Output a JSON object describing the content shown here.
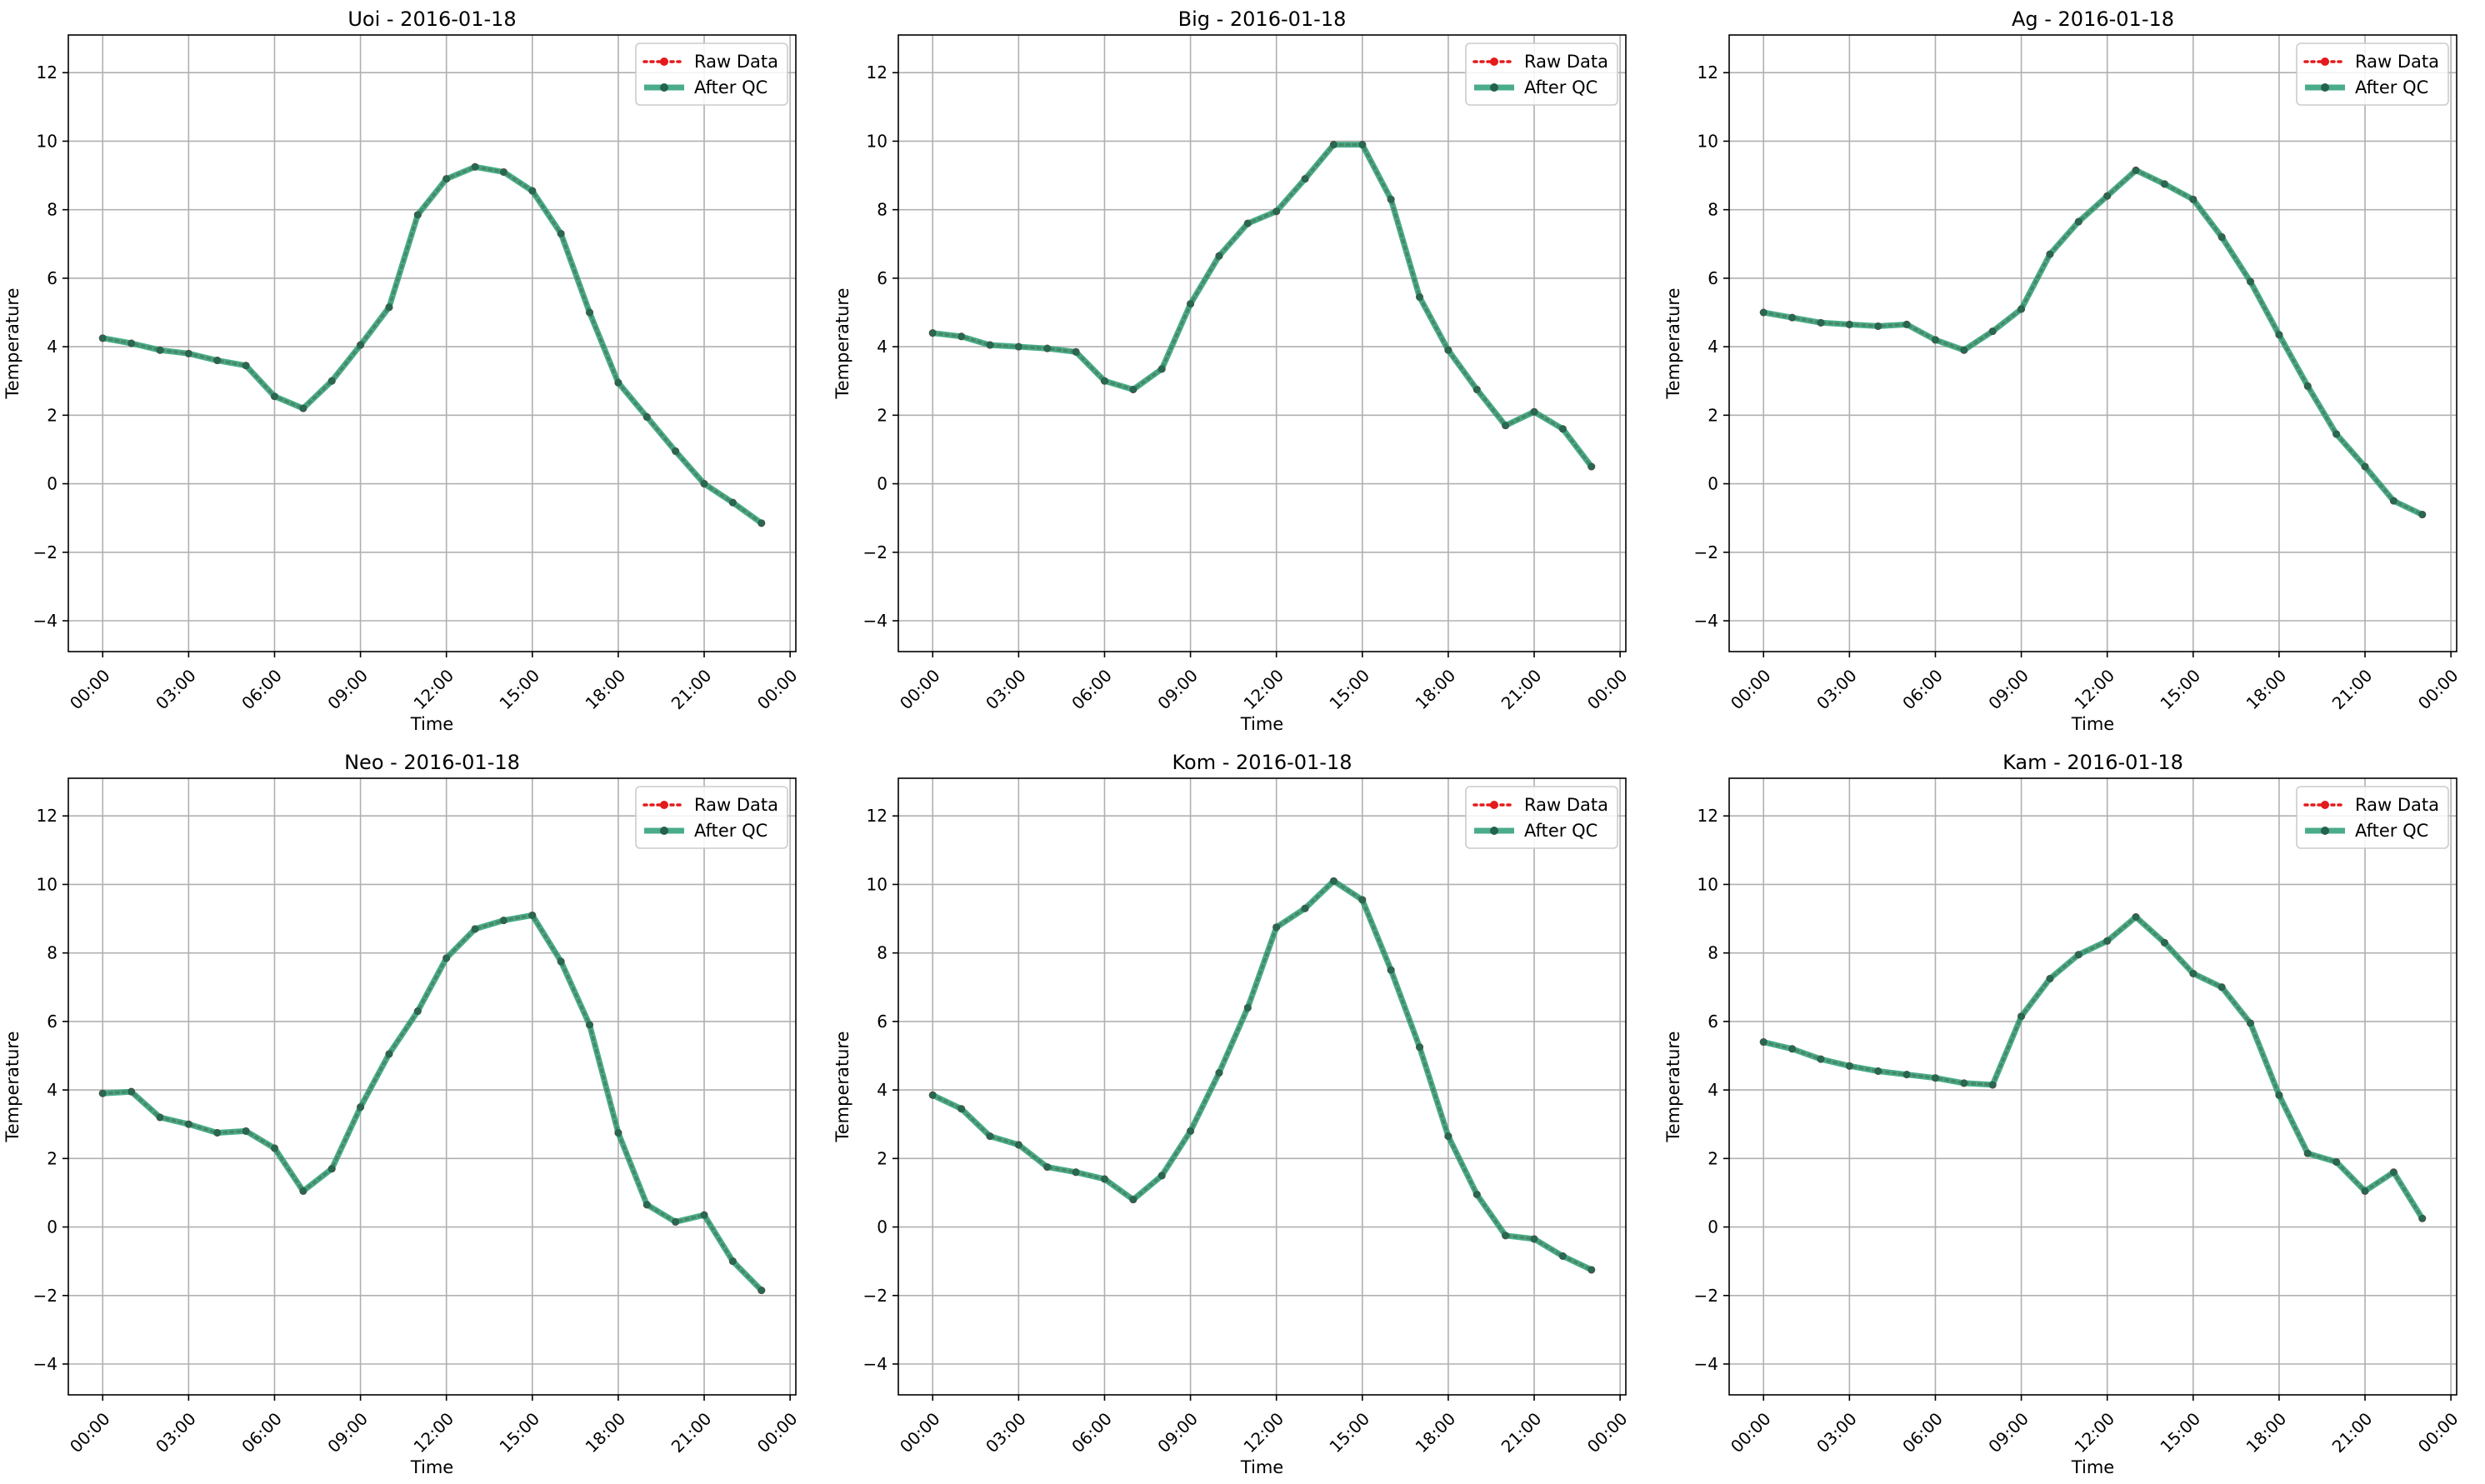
{
  "chart_data": [
    {
      "type": "line",
      "title": "Uoi - 2016-01-18",
      "xlabel": "Time",
      "ylabel": "Temperature",
      "x_ticks": [
        "00:00",
        "03:00",
        "06:00",
        "09:00",
        "12:00",
        "15:00",
        "18:00",
        "21:00",
        "00:00"
      ],
      "y_ticks": [
        -4,
        -2,
        0,
        2,
        4,
        6,
        8,
        10,
        12
      ],
      "xlim_hours": [
        -1.2,
        24.2
      ],
      "ylim": [
        -4.9,
        13.1
      ],
      "grid": true,
      "legend": {
        "position": "top-right",
        "entries": [
          "Raw Data",
          "After QC"
        ]
      },
      "x_hours": [
        0,
        1,
        2,
        3,
        4,
        5,
        6,
        7,
        8,
        9,
        10,
        11,
        12,
        13,
        14,
        15,
        16,
        17,
        18,
        19,
        20,
        21,
        22,
        23
      ],
      "series": [
        {
          "name": "Raw Data",
          "color": "#e41a1c",
          "style": "dotted",
          "values": [
            4.25,
            4.1,
            3.9,
            3.8,
            3.6,
            3.45,
            2.55,
            2.2,
            3.0,
            4.05,
            5.15,
            7.85,
            8.9,
            9.25,
            9.1,
            8.55,
            7.3,
            5.0,
            2.95,
            1.95,
            0.95,
            0.0,
            -0.55,
            -1.15
          ]
        },
        {
          "name": "After QC",
          "color": "#2a9d74",
          "style": "solid",
          "values": [
            4.25,
            4.1,
            3.9,
            3.8,
            3.6,
            3.45,
            2.55,
            2.2,
            3.0,
            4.05,
            5.15,
            7.85,
            8.9,
            9.25,
            9.1,
            8.55,
            7.3,
            5.0,
            2.95,
            1.95,
            0.95,
            0.0,
            -0.55,
            -1.15
          ]
        }
      ]
    },
    {
      "type": "line",
      "title": "Big - 2016-01-18",
      "xlabel": "Time",
      "ylabel": "Temperature",
      "x_ticks": [
        "00:00",
        "03:00",
        "06:00",
        "09:00",
        "12:00",
        "15:00",
        "18:00",
        "21:00",
        "00:00"
      ],
      "y_ticks": [
        -4,
        -2,
        0,
        2,
        4,
        6,
        8,
        10,
        12
      ],
      "xlim_hours": [
        -1.2,
        24.2
      ],
      "ylim": [
        -4.9,
        13.1
      ],
      "grid": true,
      "legend": {
        "position": "top-right",
        "entries": [
          "Raw Data",
          "After QC"
        ]
      },
      "x_hours": [
        0,
        1,
        2,
        3,
        4,
        5,
        6,
        7,
        8,
        9,
        10,
        11,
        12,
        13,
        14,
        15,
        16,
        17,
        18,
        19,
        20,
        21,
        22,
        23
      ],
      "series": [
        {
          "name": "Raw Data",
          "color": "#e41a1c",
          "style": "dotted",
          "values": [
            4.4,
            4.3,
            4.05,
            4.0,
            3.95,
            3.85,
            3.0,
            2.75,
            3.35,
            5.25,
            6.65,
            7.6,
            7.95,
            8.9,
            9.9,
            9.9,
            8.3,
            5.45,
            3.9,
            2.75,
            1.7,
            2.1,
            1.6,
            0.5
          ]
        },
        {
          "name": "After QC",
          "color": "#2a9d74",
          "style": "solid",
          "values": [
            4.4,
            4.3,
            4.05,
            4.0,
            3.95,
            3.85,
            3.0,
            2.75,
            3.35,
            5.25,
            6.65,
            7.6,
            7.95,
            8.9,
            9.9,
            9.9,
            8.3,
            5.45,
            3.9,
            2.75,
            1.7,
            2.1,
            1.6,
            0.5
          ]
        }
      ]
    },
    {
      "type": "line",
      "title": "Ag - 2016-01-18",
      "xlabel": "Time",
      "ylabel": "Temperature",
      "x_ticks": [
        "00:00",
        "03:00",
        "06:00",
        "09:00",
        "12:00",
        "15:00",
        "18:00",
        "21:00",
        "00:00"
      ],
      "y_ticks": [
        -4,
        -2,
        0,
        2,
        4,
        6,
        8,
        10,
        12
      ],
      "xlim_hours": [
        -1.2,
        24.2
      ],
      "ylim": [
        -4.9,
        13.1
      ],
      "grid": true,
      "legend": {
        "position": "top-right",
        "entries": [
          "Raw Data",
          "After QC"
        ]
      },
      "x_hours": [
        0,
        1,
        2,
        3,
        4,
        5,
        6,
        7,
        8,
        9,
        10,
        11,
        12,
        13,
        14,
        15,
        16,
        17,
        18,
        19,
        20,
        21,
        22,
        23
      ],
      "series": [
        {
          "name": "Raw Data",
          "color": "#e41a1c",
          "style": "dotted",
          "values": [
            5.0,
            4.85,
            4.7,
            4.65,
            4.6,
            4.65,
            4.2,
            3.9,
            4.45,
            5.1,
            6.7,
            7.65,
            8.4,
            9.15,
            8.75,
            8.3,
            7.2,
            5.9,
            4.35,
            2.85,
            1.45,
            0.5,
            -0.5,
            -0.9
          ]
        },
        {
          "name": "After QC",
          "color": "#2a9d74",
          "style": "solid",
          "values": [
            5.0,
            4.85,
            4.7,
            4.65,
            4.6,
            4.65,
            4.2,
            3.9,
            4.45,
            5.1,
            6.7,
            7.65,
            8.4,
            9.15,
            8.75,
            8.3,
            7.2,
            5.9,
            4.35,
            2.85,
            1.45,
            0.5,
            -0.5,
            -0.9
          ]
        }
      ]
    },
    {
      "type": "line",
      "title": "Neo - 2016-01-18",
      "xlabel": "Time",
      "ylabel": "Temperature",
      "x_ticks": [
        "00:00",
        "03:00",
        "06:00",
        "09:00",
        "12:00",
        "15:00",
        "18:00",
        "21:00",
        "00:00"
      ],
      "y_ticks": [
        -4,
        -2,
        0,
        2,
        4,
        6,
        8,
        10,
        12
      ],
      "xlim_hours": [
        -1.2,
        24.2
      ],
      "ylim": [
        -4.9,
        13.1
      ],
      "grid": true,
      "legend": {
        "position": "top-right",
        "entries": [
          "Raw Data",
          "After QC"
        ]
      },
      "x_hours": [
        0,
        1,
        2,
        3,
        4,
        5,
        6,
        7,
        8,
        9,
        10,
        11,
        12,
        13,
        14,
        15,
        16,
        17,
        18,
        19,
        20,
        21,
        22,
        23
      ],
      "series": [
        {
          "name": "Raw Data",
          "color": "#e41a1c",
          "style": "dotted",
          "values": [
            3.9,
            3.95,
            3.2,
            3.0,
            2.75,
            2.8,
            2.3,
            1.05,
            1.7,
            3.5,
            5.05,
            6.3,
            7.85,
            8.7,
            8.95,
            9.1,
            7.75,
            5.9,
            2.75,
            0.65,
            0.15,
            0.35,
            -1.0,
            -1.85
          ]
        },
        {
          "name": "After QC",
          "color": "#2a9d74",
          "style": "solid",
          "values": [
            3.9,
            3.95,
            3.2,
            3.0,
            2.75,
            2.8,
            2.3,
            1.05,
            1.7,
            3.5,
            5.05,
            6.3,
            7.85,
            8.7,
            8.95,
            9.1,
            7.75,
            5.9,
            2.75,
            0.65,
            0.15,
            0.35,
            -1.0,
            -1.85
          ]
        }
      ]
    },
    {
      "type": "line",
      "title": "Kom - 2016-01-18",
      "xlabel": "Time",
      "ylabel": "Temperature",
      "x_ticks": [
        "00:00",
        "03:00",
        "06:00",
        "09:00",
        "12:00",
        "15:00",
        "18:00",
        "21:00",
        "00:00"
      ],
      "y_ticks": [
        -4,
        -2,
        0,
        2,
        4,
        6,
        8,
        10,
        12
      ],
      "xlim_hours": [
        -1.2,
        24.2
      ],
      "ylim": [
        -4.9,
        13.1
      ],
      "grid": true,
      "legend": {
        "position": "top-right",
        "entries": [
          "Raw Data",
          "After QC"
        ]
      },
      "x_hours": [
        0,
        1,
        2,
        3,
        4,
        5,
        6,
        7,
        8,
        9,
        10,
        11,
        12,
        13,
        14,
        15,
        16,
        17,
        18,
        19,
        20,
        21,
        22,
        23
      ],
      "series": [
        {
          "name": "Raw Data",
          "color": "#e41a1c",
          "style": "dotted",
          "values": [
            3.85,
            3.45,
            2.65,
            2.4,
            1.75,
            1.6,
            1.4,
            0.8,
            1.5,
            2.8,
            4.5,
            6.4,
            8.75,
            9.3,
            10.1,
            9.55,
            7.5,
            5.25,
            2.65,
            0.95,
            -0.25,
            -0.35,
            -0.85,
            -1.25
          ]
        },
        {
          "name": "After QC",
          "color": "#2a9d74",
          "style": "solid",
          "values": [
            3.85,
            3.45,
            2.65,
            2.4,
            1.75,
            1.6,
            1.4,
            0.8,
            1.5,
            2.8,
            4.5,
            6.4,
            8.75,
            9.3,
            10.1,
            9.55,
            7.5,
            5.25,
            2.65,
            0.95,
            -0.25,
            -0.35,
            -0.85,
            -1.25
          ]
        }
      ]
    },
    {
      "type": "line",
      "title": "Kam - 2016-01-18",
      "xlabel": "Time",
      "ylabel": "Temperature",
      "x_ticks": [
        "00:00",
        "03:00",
        "06:00",
        "09:00",
        "12:00",
        "15:00",
        "18:00",
        "21:00",
        "00:00"
      ],
      "y_ticks": [
        -4,
        -2,
        0,
        2,
        4,
        6,
        8,
        10,
        12
      ],
      "xlim_hours": [
        -1.2,
        24.2
      ],
      "ylim": [
        -4.9,
        13.1
      ],
      "grid": true,
      "legend": {
        "position": "top-right",
        "entries": [
          "Raw Data",
          "After QC"
        ]
      },
      "x_hours": [
        0,
        1,
        2,
        3,
        4,
        5,
        6,
        7,
        8,
        9,
        10,
        11,
        12,
        13,
        14,
        15,
        16,
        17,
        18,
        19,
        20,
        21,
        22,
        23
      ],
      "series": [
        {
          "name": "Raw Data",
          "color": "#e41a1c",
          "style": "dotted",
          "values": [
            5.4,
            5.2,
            4.9,
            4.7,
            4.55,
            4.45,
            4.35,
            4.2,
            4.15,
            6.15,
            7.25,
            7.95,
            8.35,
            9.05,
            8.3,
            7.4,
            7.0,
            5.95,
            3.85,
            2.15,
            1.9,
            1.05,
            1.6,
            0.25
          ]
        },
        {
          "name": "After QC",
          "color": "#2a9d74",
          "style": "solid",
          "values": [
            5.4,
            5.2,
            4.9,
            4.7,
            4.55,
            4.45,
            4.35,
            4.2,
            4.15,
            6.15,
            7.25,
            7.95,
            8.35,
            9.05,
            8.3,
            7.4,
            7.0,
            5.95,
            3.85,
            2.15,
            1.9,
            1.05,
            1.6,
            0.25
          ]
        }
      ]
    }
  ]
}
